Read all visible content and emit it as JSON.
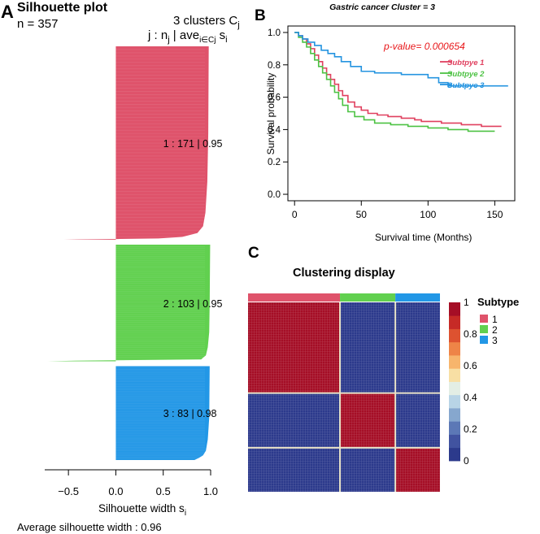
{
  "panel_letters": {
    "a": "A",
    "b": "B",
    "c": "C"
  },
  "chart_data": [
    {
      "type": "bar",
      "subtype": "silhouette",
      "title": "Silhouette plot",
      "n_label": "n = 357",
      "header_line1": "3  clusters  C",
      "header_line1_sub": "j",
      "header_line2_parts": [
        "j :  n",
        "j",
        " | ave",
        "i∈Cj",
        "  s",
        "i"
      ],
      "xlabel": "Silhouette width s",
      "xlabel_sub": "i",
      "xlim": [
        -0.75,
        1.0
      ],
      "xticks": [
        -0.5,
        0.0,
        0.5,
        1.0
      ],
      "xtick_labels": [
        "−0.5",
        "0.0",
        "0.5",
        "1.0"
      ],
      "footer": "Average silhouette width :  0.96",
      "clusters": [
        {
          "id": "1",
          "n": 171,
          "avg": 0.95,
          "label": "1 :   171  |  0.95",
          "color": "#DF536B",
          "profile": [
            [
              0,
              0.98
            ],
            [
              0.45,
              0.975
            ],
            [
              0.7,
              0.965
            ],
            [
              0.86,
              0.945
            ],
            [
              0.93,
              0.92
            ],
            [
              0.965,
              0.86
            ],
            [
              0.985,
              0.7
            ],
            [
              0.993,
              0.45
            ],
            [
              0.998,
              -0.4
            ],
            [
              1,
              -0.55
            ]
          ]
        },
        {
          "id": "2",
          "n": 103,
          "avg": 0.95,
          "label": "2 :   103  |  0.95",
          "color": "#61D04F",
          "profile": [
            [
              0,
              0.995
            ],
            [
              0.5,
              0.99
            ],
            [
              0.75,
              0.985
            ],
            [
              0.88,
              0.97
            ],
            [
              0.95,
              0.95
            ],
            [
              0.97,
              0.92
            ],
            [
              0.985,
              0.9
            ],
            [
              0.995,
              -0.43
            ],
            [
              1,
              -0.72
            ]
          ]
        },
        {
          "id": "3",
          "n": 83,
          "avg": 0.98,
          "label": "3 :   83  |  0.98",
          "color": "#2297E6",
          "profile": [
            [
              0,
              0.99
            ],
            [
              0.55,
              0.985
            ],
            [
              0.78,
              0.97
            ],
            [
              0.9,
              0.95
            ],
            [
              0.95,
              0.92
            ],
            [
              0.975,
              0.88
            ],
            [
              1,
              0.83
            ]
          ]
        }
      ]
    },
    {
      "type": "line",
      "subtype": "kaplan-meier",
      "title": "Gastric cancer Cluster = 3",
      "xlabel": "Survival time (Months)",
      "ylabel": "Survival probability",
      "xlim": [
        -5,
        165
      ],
      "ylim": [
        -0.04,
        1.04
      ],
      "xticks": [
        0,
        50,
        100,
        150
      ],
      "yticks": [
        0.0,
        0.2,
        0.4,
        0.6,
        0.8,
        1.0
      ],
      "ytick_labels": [
        "0.0",
        "0.2",
        "0.4",
        "0.6",
        "0.8",
        "1.0"
      ],
      "annotation": "p-value= 0.000654",
      "annotation_color": "#E8181B",
      "series": [
        {
          "name": "Subtpye 1",
          "color": "#E0405F",
          "steps": [
            [
              0,
              1.0
            ],
            [
              3,
              0.98
            ],
            [
              6,
              0.96
            ],
            [
              9,
              0.93
            ],
            [
              12,
              0.9
            ],
            [
              15,
              0.86
            ],
            [
              18,
              0.82
            ],
            [
              21,
              0.78
            ],
            [
              24,
              0.74
            ],
            [
              27,
              0.71
            ],
            [
              30,
              0.68
            ],
            [
              33,
              0.64
            ],
            [
              36,
              0.61
            ],
            [
              40,
              0.57
            ],
            [
              45,
              0.54
            ],
            [
              50,
              0.52
            ],
            [
              55,
              0.5
            ],
            [
              62,
              0.49
            ],
            [
              70,
              0.48
            ],
            [
              80,
              0.47
            ],
            [
              90,
              0.46
            ],
            [
              95,
              0.45
            ],
            [
              102,
              0.45
            ],
            [
              110,
              0.44
            ],
            [
              118,
              0.44
            ],
            [
              125,
              0.43
            ],
            [
              140,
              0.42
            ],
            [
              155,
              0.42
            ]
          ]
        },
        {
          "name": "Subtpye 2",
          "color": "#4CC243",
          "steps": [
            [
              0,
              1.0
            ],
            [
              3,
              0.97
            ],
            [
              6,
              0.94
            ],
            [
              9,
              0.91
            ],
            [
              12,
              0.87
            ],
            [
              15,
              0.83
            ],
            [
              18,
              0.79
            ],
            [
              21,
              0.75
            ],
            [
              24,
              0.71
            ],
            [
              27,
              0.67
            ],
            [
              30,
              0.63
            ],
            [
              33,
              0.59
            ],
            [
              36,
              0.55
            ],
            [
              40,
              0.51
            ],
            [
              45,
              0.48
            ],
            [
              52,
              0.46
            ],
            [
              60,
              0.44
            ],
            [
              72,
              0.43
            ],
            [
              85,
              0.42
            ],
            [
              100,
              0.41
            ],
            [
              115,
              0.4
            ],
            [
              130,
              0.39
            ],
            [
              150,
              0.39
            ]
          ]
        },
        {
          "name": "Subtpye 3",
          "color": "#2594E0",
          "steps": [
            [
              0,
              1.0
            ],
            [
              3,
              0.98
            ],
            [
              6,
              0.96
            ],
            [
              10,
              0.94
            ],
            [
              15,
              0.92
            ],
            [
              20,
              0.89
            ],
            [
              25,
              0.87
            ],
            [
              30,
              0.85
            ],
            [
              35,
              0.82
            ],
            [
              42,
              0.79
            ],
            [
              50,
              0.76
            ],
            [
              60,
              0.75
            ],
            [
              80,
              0.74
            ],
            [
              100,
              0.72
            ],
            [
              108,
              0.69
            ],
            [
              115,
              0.67
            ],
            [
              160,
              0.67
            ]
          ]
        }
      ]
    },
    {
      "type": "heatmap",
      "subtype": "consensus-matrix",
      "title": "Clustering display",
      "groups": [
        {
          "label": "1",
          "size": 171,
          "color": "#DF536B"
        },
        {
          "label": "2",
          "size": 103,
          "color": "#61D04F"
        },
        {
          "label": "3",
          "size": 83,
          "color": "#2297E6"
        }
      ],
      "within_value": 1.0,
      "between_value": 0.0,
      "legend_title": "Subtype",
      "colorbar_ticks": [
        0,
        0.2,
        0.4,
        0.6,
        0.8,
        1
      ],
      "colorbar_tick_labels": [
        "0",
        "0.2",
        "0.4",
        "0.6",
        "0.8",
        "1"
      ],
      "colorbar_colors": [
        "#2C3A8C",
        "#4153A0",
        "#5C78B6",
        "#86A7CE",
        "#B8D4E6",
        "#E3EEE5",
        "#F8DFA4",
        "#F7B56C",
        "#EE8447",
        "#DD5230",
        "#C62A26",
        "#A50E26"
      ]
    }
  ]
}
